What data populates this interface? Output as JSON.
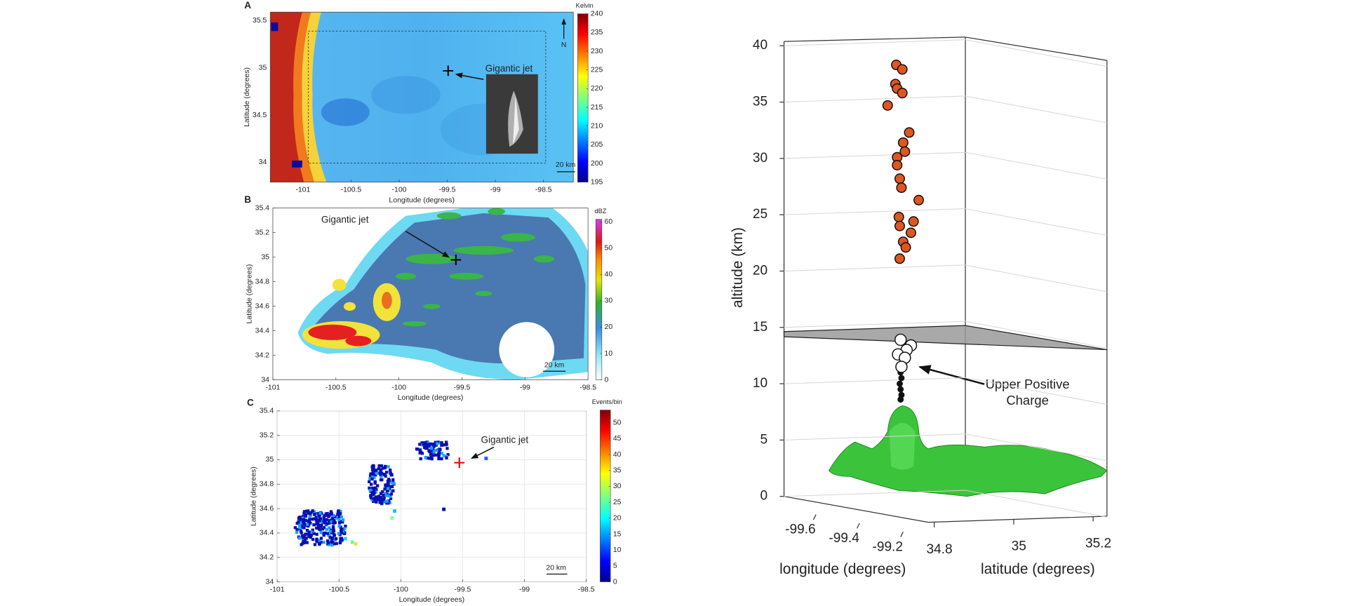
{
  "chart_data": [
    {
      "type": "heatmap",
      "panel": "A",
      "xlabel": "Longitude (degrees)",
      "ylabel": "Latitude (degrees)",
      "xlim": [
        -101.34,
        -98.19
      ],
      "ylim": [
        33.79,
        35.59
      ],
      "xticks": [
        -101,
        -100.5,
        -100,
        -99.5,
        -99,
        -98.5
      ],
      "yticks": [
        34,
        34.5,
        35,
        35.5
      ],
      "colorbar": {
        "label": "Kelvin",
        "lim": [
          195,
          240
        ],
        "ticks": [
          195,
          200,
          205,
          210,
          215,
          220,
          225,
          230,
          235,
          240
        ],
        "colormap": "jet"
      },
      "annotation": "Gigantic jet",
      "north": "N",
      "scale": "20 km",
      "grid": false
    },
    {
      "type": "heatmap",
      "panel": "B",
      "xlabel": "Longitude (degrees)",
      "ylabel": "Latitude (degrees)",
      "xlim": [
        -101,
        -98.5
      ],
      "ylim": [
        34,
        35.4
      ],
      "xticks": [
        -101,
        -100.5,
        -100,
        -99.5,
        -99,
        -98.5
      ],
      "yticks": [
        34,
        34.2,
        34.4,
        34.6,
        34.8,
        35,
        35.2,
        35.4
      ],
      "colorbar": {
        "label": "dBZ",
        "lim": [
          0,
          61
        ],
        "ticks": [
          0,
          10,
          20,
          30,
          40,
          50,
          60
        ],
        "colormap": "dbz"
      },
      "annotation": "Gigantic jet",
      "scale": "20 km",
      "grid": false
    },
    {
      "type": "heatmap",
      "panel": "C",
      "xlabel": "Longitude (degrees)",
      "ylabel": "Latitude (degrees)",
      "xlim": [
        -101,
        -98.5
      ],
      "ylim": [
        34,
        35.4
      ],
      "xticks": [
        -101,
        -100.5,
        -100,
        -99.5,
        -99,
        -98.5
      ],
      "yticks": [
        34,
        34.2,
        34.4,
        34.6,
        34.8,
        35,
        35.2,
        35.4
      ],
      "colorbar": {
        "label": "Events/bin",
        "lim": [
          0,
          54
        ],
        "ticks": [
          0,
          5,
          10,
          15,
          20,
          25,
          30,
          35,
          40,
          45,
          50
        ],
        "colormap": "jet"
      },
      "annotation": "Gigantic jet",
      "scale": "20 km",
      "grid": true
    },
    {
      "type": "scatter3d",
      "xlabel": "longitude (degrees)",
      "ylabel": "latitude (degrees)",
      "zlabel": "altitude (km)",
      "xticks": [
        -99.6,
        -99.4,
        -99.2
      ],
      "yticks": [
        34.8,
        35,
        35.2
      ],
      "zlim": [
        0,
        40
      ],
      "zticks": [
        0,
        5,
        10,
        15,
        20,
        25,
        30,
        35,
        40
      ],
      "plane_altitude": 14.4,
      "upper_points": {
        "color": "#e0561f",
        "values": [
          38.3,
          37.9,
          36.6,
          36.2,
          35.8,
          34.7,
          32.3,
          31.4,
          30.6,
          30.1,
          29.4,
          28.2,
          27.4,
          26.3,
          24.8,
          24.4,
          24.0,
          23.4,
          22.6,
          22.1,
          21.1
        ]
      },
      "charge_points": {
        "color": "#ffffff",
        "values": [
          13.9,
          13.4,
          13.0,
          12.6,
          12.3,
          11.5
        ]
      },
      "lower_points": {
        "color": "#111111",
        "values": [
          11.0,
          10.5,
          10.0,
          9.5,
          9.0,
          8.6
        ]
      },
      "annotation": "Upper Positive Charge"
    }
  ]
}
